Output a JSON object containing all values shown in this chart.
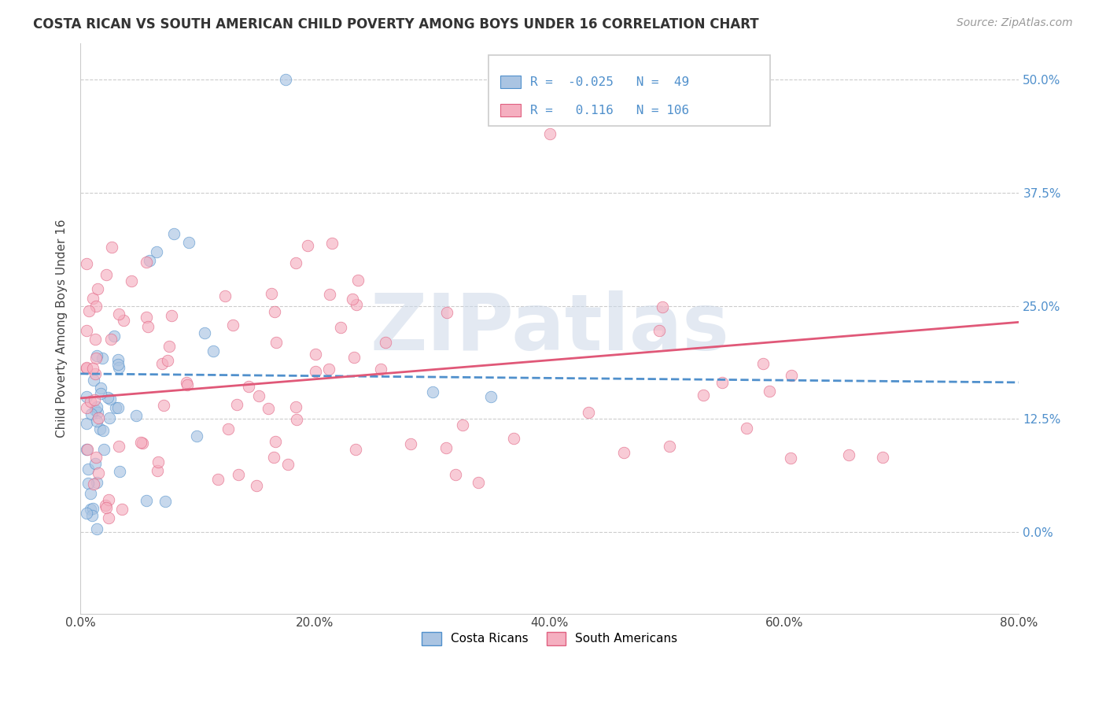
{
  "title": "COSTA RICAN VS SOUTH AMERICAN CHILD POVERTY AMONG BOYS UNDER 16 CORRELATION CHART",
  "source": "Source: ZipAtlas.com",
  "ylabel": "Child Poverty Among Boys Under 16",
  "xlim": [
    0.0,
    0.8
  ],
  "ylim": [
    -0.09,
    0.54
  ],
  "y_tick_vals": [
    0.0,
    0.125,
    0.25,
    0.375,
    0.5
  ],
  "y_tick_labels": [
    "0.0%",
    "12.5%",
    "25.0%",
    "37.5%",
    "50.0%"
  ],
  "x_tick_vals": [
    0.0,
    0.2,
    0.4,
    0.6,
    0.8
  ],
  "x_tick_labels": [
    "0.0%",
    "20.0%",
    "40.0%",
    "60.0%",
    "80.0%"
  ],
  "grid_color": "#cccccc",
  "background_color": "#ffffff",
  "costa_rican_face_color": "#aac4e2",
  "costa_rican_edge_color": "#5090cc",
  "south_american_face_color": "#f5afc0",
  "south_american_edge_color": "#e06080",
  "cr_line_color": "#5090cc",
  "sa_line_color": "#e05878",
  "costa_rican_R": -0.025,
  "costa_rican_N": 49,
  "south_american_R": 0.116,
  "south_american_N": 106,
  "legend_label_CR": "Costa Ricans",
  "legend_label_SA": "South Americans",
  "watermark_text": "ZIPatlas",
  "cr_line_x": [
    0.0,
    0.8
  ],
  "cr_line_y_start": 0.175,
  "cr_line_slope": -0.012,
  "sa_line_y_start": 0.148,
  "sa_line_slope": 0.105
}
